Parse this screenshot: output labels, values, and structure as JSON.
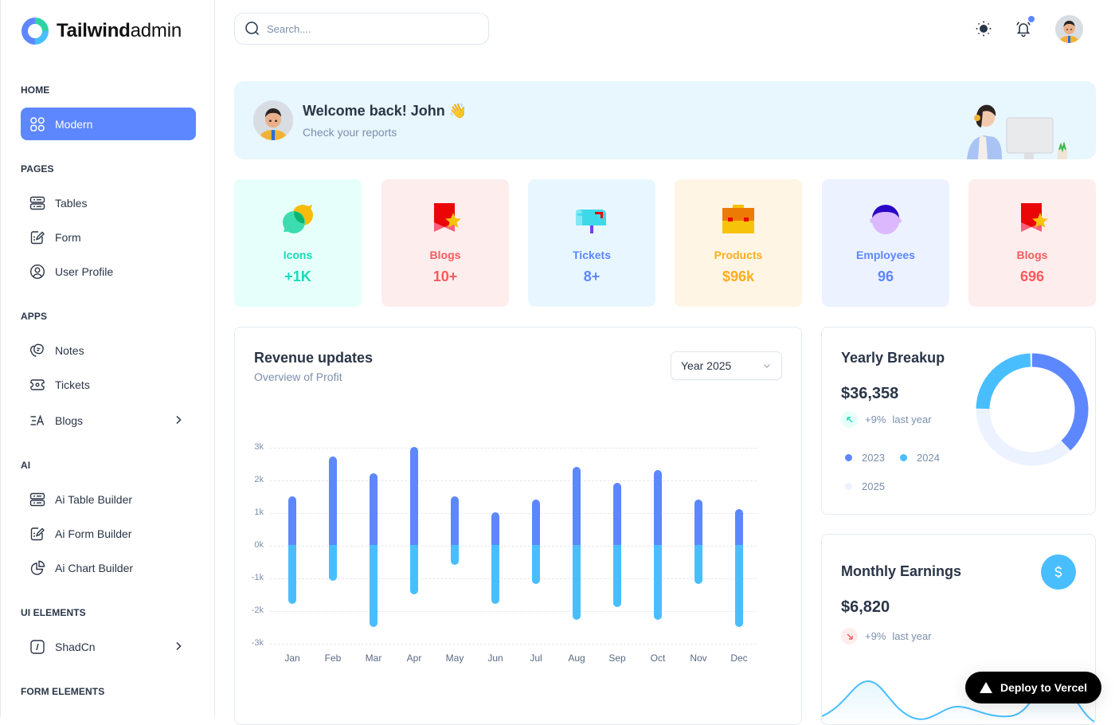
{
  "brand": {
    "name_bold": "Tailwind",
    "name_light": "admin"
  },
  "sidebar": {
    "sections": [
      {
        "title": "HOME",
        "items": [
          {
            "label": "Modern",
            "icon": "grid-icon",
            "active": true
          }
        ]
      },
      {
        "title": "PAGES",
        "items": [
          {
            "label": "Tables",
            "icon": "table-icon"
          },
          {
            "label": "Form",
            "icon": "form-edit-icon"
          },
          {
            "label": "User Profile",
            "icon": "user-circle-icon"
          }
        ]
      },
      {
        "title": "APPS",
        "items": [
          {
            "label": "Notes",
            "icon": "notes-icon"
          },
          {
            "label": "Tickets",
            "icon": "ticket-icon"
          },
          {
            "label": "Blogs",
            "icon": "blog-icon",
            "has_submenu": true
          }
        ]
      },
      {
        "title": "AI",
        "items": [
          {
            "label": "Ai Table Builder",
            "icon": "table-icon"
          },
          {
            "label": "Ai Form Builder",
            "icon": "form-edit-icon"
          },
          {
            "label": "Ai Chart Builder",
            "icon": "pie-chart-icon"
          }
        ]
      },
      {
        "title": "UI ELEMENTS",
        "items": [
          {
            "label": "ShadCn",
            "icon": "slash-box-icon",
            "has_submenu": true
          }
        ]
      },
      {
        "title": "FORM ELEMENTS",
        "items": []
      }
    ]
  },
  "topbar": {
    "search_placeholder": "Search....",
    "icons": [
      "sun-icon",
      "bell-icon",
      "avatar"
    ],
    "notification_dot_color": "#5d87ff"
  },
  "welcome": {
    "title": "Welcome back! John",
    "emoji": "👋",
    "subtitle": "Check your reports"
  },
  "stats": [
    {
      "label": "Icons",
      "value": "+1K",
      "icon": "chat-bubbles-icon",
      "bg": "#e6fffa",
      "color": "#13deb9"
    },
    {
      "label": "Blogs",
      "value": "10+",
      "icon": "bookmark-star-icon",
      "bg": "#fdeded",
      "color": "#fa5a5a"
    },
    {
      "label": "Tickets",
      "value": "8+",
      "icon": "mailbox-icon",
      "bg": "#e8f7ff",
      "color": "#5d87ff"
    },
    {
      "label": "Products",
      "value": "$96k",
      "icon": "briefcase-icon",
      "bg": "#fef5e5",
      "color": "#ffae1f"
    },
    {
      "label": "Employees",
      "value": "96",
      "icon": "person-icon",
      "bg": "#ecf2ff",
      "color": "#5d87ff"
    },
    {
      "label": "Blogs",
      "value": "696",
      "icon": "bookmark-star-icon",
      "bg": "#fdeded",
      "color": "#fa5a5a"
    }
  ],
  "revenue": {
    "title": "Revenue updates",
    "subtitle": "Overview of Profit",
    "select_value": "Year 2025"
  },
  "chart_data": [
    {
      "type": "bar",
      "title": "Revenue updates",
      "subtitle": "Overview of Profit",
      "categories": [
        "Jan",
        "Feb",
        "Mar",
        "Apr",
        "May",
        "Jun",
        "Jul",
        "Aug",
        "Sep",
        "Oct",
        "Nov",
        "Dec"
      ],
      "series": [
        {
          "name": "Earnings",
          "color": "#5d87ff",
          "values": [
            1.5,
            2.7,
            2.2,
            3.0,
            1.5,
            1.0,
            1.4,
            2.4,
            1.9,
            2.3,
            1.4,
            1.1
          ]
        },
        {
          "name": "Expense",
          "color": "#49beff",
          "values": [
            -1.8,
            -1.1,
            -2.5,
            -1.5,
            -0.6,
            -1.8,
            -1.2,
            -2.3,
            -1.9,
            -2.3,
            -1.2,
            -2.5
          ]
        }
      ],
      "stacked": true,
      "yticks": [
        "3k",
        "2k",
        "1k",
        "0k",
        "-1k",
        "-2k",
        "-3k"
      ],
      "ylim": [
        -3,
        3
      ],
      "yunit": "k",
      "xlabel": "",
      "ylabel": "",
      "grid": "dashed horizontal"
    },
    {
      "type": "pie",
      "title": "Yearly Breakup",
      "donut": true,
      "categories": [
        "2023",
        "2024",
        "2025"
      ],
      "values": [
        38,
        22,
        40
      ],
      "colors": [
        "#5d87ff",
        "#49beff",
        "#ecf2ff"
      ]
    },
    {
      "type": "area",
      "title": "Monthly Earnings",
      "series": [
        {
          "name": "Earnings",
          "color": "#49beff",
          "values": [
            25,
            66,
            35,
            52,
            20,
            48,
            18,
            60,
            22
          ]
        }
      ]
    }
  ],
  "yearly": {
    "title": "Yearly Breakup",
    "amount": "$36,358",
    "trend_pct": "+9%",
    "trend_text": "last year",
    "legend": [
      {
        "label": "2023",
        "color": "#5d87ff"
      },
      {
        "label": "2024",
        "color": "#49beff"
      },
      {
        "label": "2025",
        "color": "#ecf2ff"
      }
    ]
  },
  "monthly": {
    "title": "Monthly Earnings",
    "amount": "$6,820",
    "trend_pct": "+9%",
    "trend_text": "last year"
  },
  "deploy": {
    "label": "Deploy to Vercel"
  }
}
